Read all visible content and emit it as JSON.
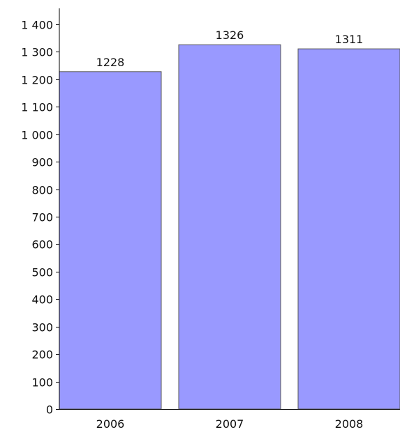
{
  "chart_data": {
    "type": "bar",
    "categories": [
      "2006",
      "2007",
      "2008"
    ],
    "values": [
      1228,
      1326,
      1311
    ],
    "value_labels": [
      "1228",
      "1326",
      "1311"
    ],
    "ylim": [
      0,
      1400
    ],
    "y_ticks": [
      0,
      100,
      200,
      300,
      400,
      500,
      600,
      700,
      800,
      900,
      1000,
      1100,
      1200,
      1300,
      1400
    ],
    "y_tick_labels": [
      "0",
      "100",
      "200",
      "300",
      "400",
      "500",
      "600",
      "700",
      "800",
      "900",
      "1 000",
      "1 100",
      "1 200",
      "1 300",
      "1 400"
    ],
    "grid": false,
    "legend": "none",
    "title": "",
    "xlabel": "",
    "ylabel": "",
    "bar_color": "#9999ff",
    "bar_edge_color": "#555555",
    "axis_color": "#000000"
  }
}
